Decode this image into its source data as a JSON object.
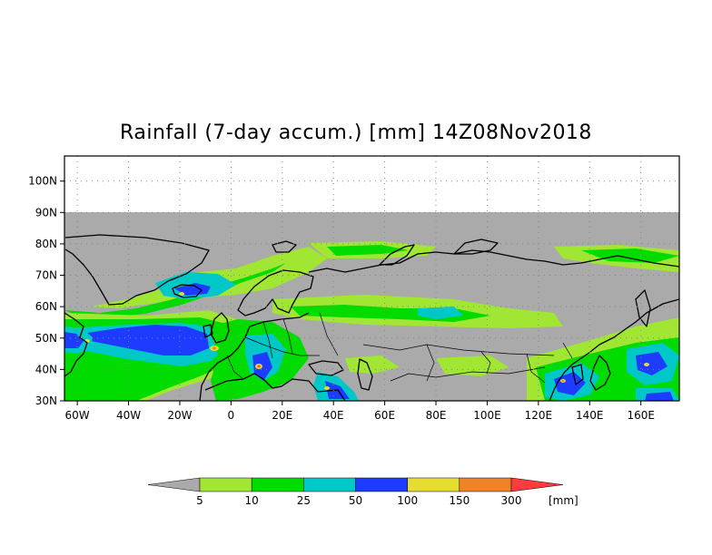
{
  "title": "Rainfall (7-day accum.) [mm] 14Z08Nov2018",
  "map": {
    "lon_range": [
      -65,
      175
    ],
    "lat_range": [
      30,
      108
    ],
    "data_lat_max": 90,
    "lat_ticks": [
      {
        "value": 30,
        "label": "30N"
      },
      {
        "value": 40,
        "label": "40N"
      },
      {
        "value": 50,
        "label": "50N"
      },
      {
        "value": 60,
        "label": "60N"
      },
      {
        "value": 70,
        "label": "70N"
      },
      {
        "value": 80,
        "label": "80N"
      },
      {
        "value": 90,
        "label": "90N"
      },
      {
        "value": 100,
        "label": "100N"
      }
    ],
    "lon_ticks": [
      {
        "value": -60,
        "label": "60W"
      },
      {
        "value": -40,
        "label": "40W"
      },
      {
        "value": -20,
        "label": "20W"
      },
      {
        "value": 0,
        "label": "0"
      },
      {
        "value": 20,
        "label": "20E"
      },
      {
        "value": 40,
        "label": "40E"
      },
      {
        "value": 60,
        "label": "60E"
      },
      {
        "value": 80,
        "label": "80E"
      },
      {
        "value": 100,
        "label": "100E"
      },
      {
        "value": 120,
        "label": "120E"
      },
      {
        "value": 140,
        "label": "140E"
      },
      {
        "value": 160,
        "label": "160E"
      }
    ],
    "colors": {
      "no_rain": "#aaaaaa",
      "c5": "#a0e632",
      "c10": "#00dc00",
      "c25": "#00c8c8",
      "c50": "#1e3cff",
      "c100": "#e6dc32",
      "c150": "#f08228",
      "c300": "#fa3c3c"
    }
  },
  "colorbar": {
    "labels": [
      "5",
      "10",
      "25",
      "50",
      "100",
      "150",
      "300"
    ],
    "colors": [
      "#aaaaaa",
      "#a0e632",
      "#00dc00",
      "#00c8c8",
      "#1e3cff",
      "#e6dc32",
      "#f08228",
      "#fa3c3c"
    ],
    "unit": "[mm]"
  }
}
